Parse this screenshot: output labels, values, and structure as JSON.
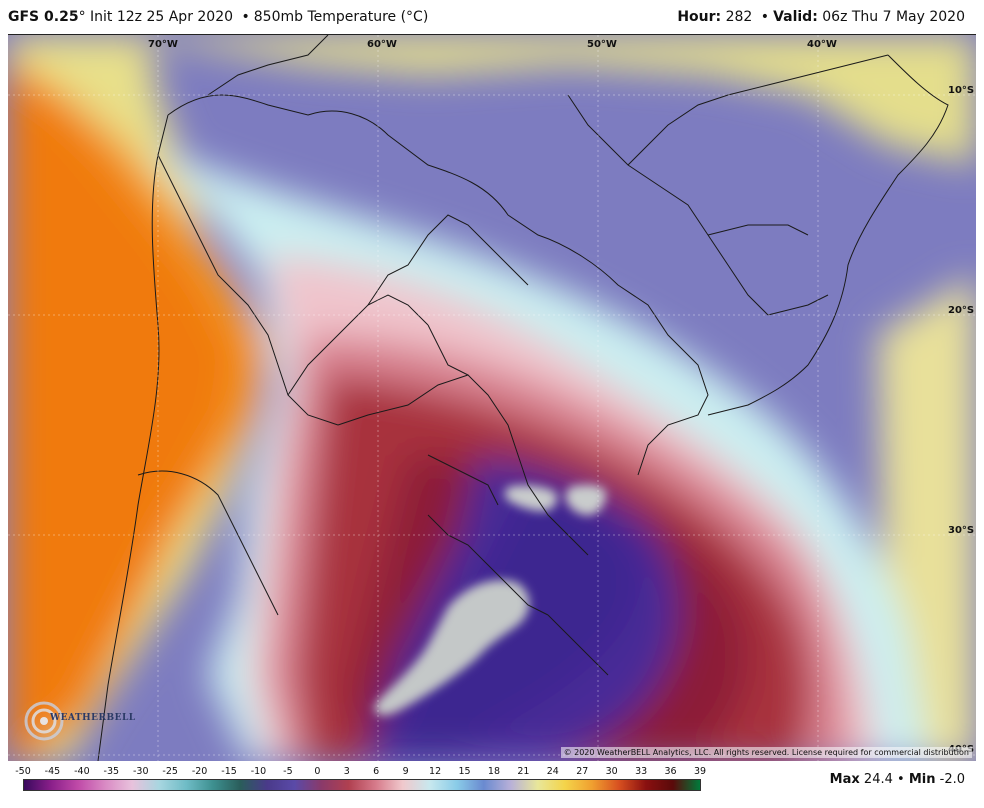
{
  "header": {
    "model": "GFS 0.25",
    "degree": "°",
    "init": "Init 12z 25 Apr 2020",
    "bullet": "•",
    "product": "850mb Temperature (°C)",
    "hour_label": "Hour:",
    "hour_value": "282",
    "valid_label": "Valid:",
    "valid_value": "06z Thu 7 May 2020"
  },
  "map": {
    "lon_labels": [
      "70°W",
      "60°W",
      "50°W",
      "40°W"
    ],
    "lat_labels": [
      "10°S",
      "20°S",
      "30°S",
      "40°S"
    ],
    "copyright": "© 2020 WeatherBELL Analytics, LLC. All rights reserved. License required for commercial distribution",
    "logo_text": "WEATHERBELL",
    "colors": {
      "warm_purple": "#4a2f9a",
      "deep_red": "#9a2534",
      "pink": "#e8aab5",
      "light_cyan": "#c8eef0",
      "violet": "#6a68b8",
      "yellow": "#e8e08a",
      "orange": "#f08a1a",
      "grey": "#c2c6c6"
    }
  },
  "colorbar": {
    "ticks": [
      "-50",
      "-45",
      "-40",
      "-35",
      "-30",
      "-25",
      "-20",
      "-15",
      "-10",
      "-5",
      "0",
      "3",
      "6",
      "9",
      "12",
      "15",
      "18",
      "21",
      "24",
      "27",
      "30",
      "33",
      "36",
      "39"
    ],
    "gradient": [
      "#3a0a5e",
      "#8a1f8a",
      "#c04aa8",
      "#d98ac4",
      "#e8c2dc",
      "#a8d6e0",
      "#6fbcc6",
      "#3d8f8f",
      "#2a5d5a",
      "#4a3a8a",
      "#5a4aa8",
      "#8a3a6a",
      "#b04050",
      "#d67a8a",
      "#f0c8cc",
      "#c8e8ee",
      "#8acce8",
      "#6a8ad0",
      "#b8b0d8",
      "#e8e69a",
      "#f4d44a",
      "#f0a030",
      "#d85020",
      "#8a1010",
      "#5a0a0a",
      "#007a3a"
    ],
    "max_label": "Max",
    "max_value": "24.4",
    "min_label": "Min",
    "min_value": "-2.0"
  }
}
